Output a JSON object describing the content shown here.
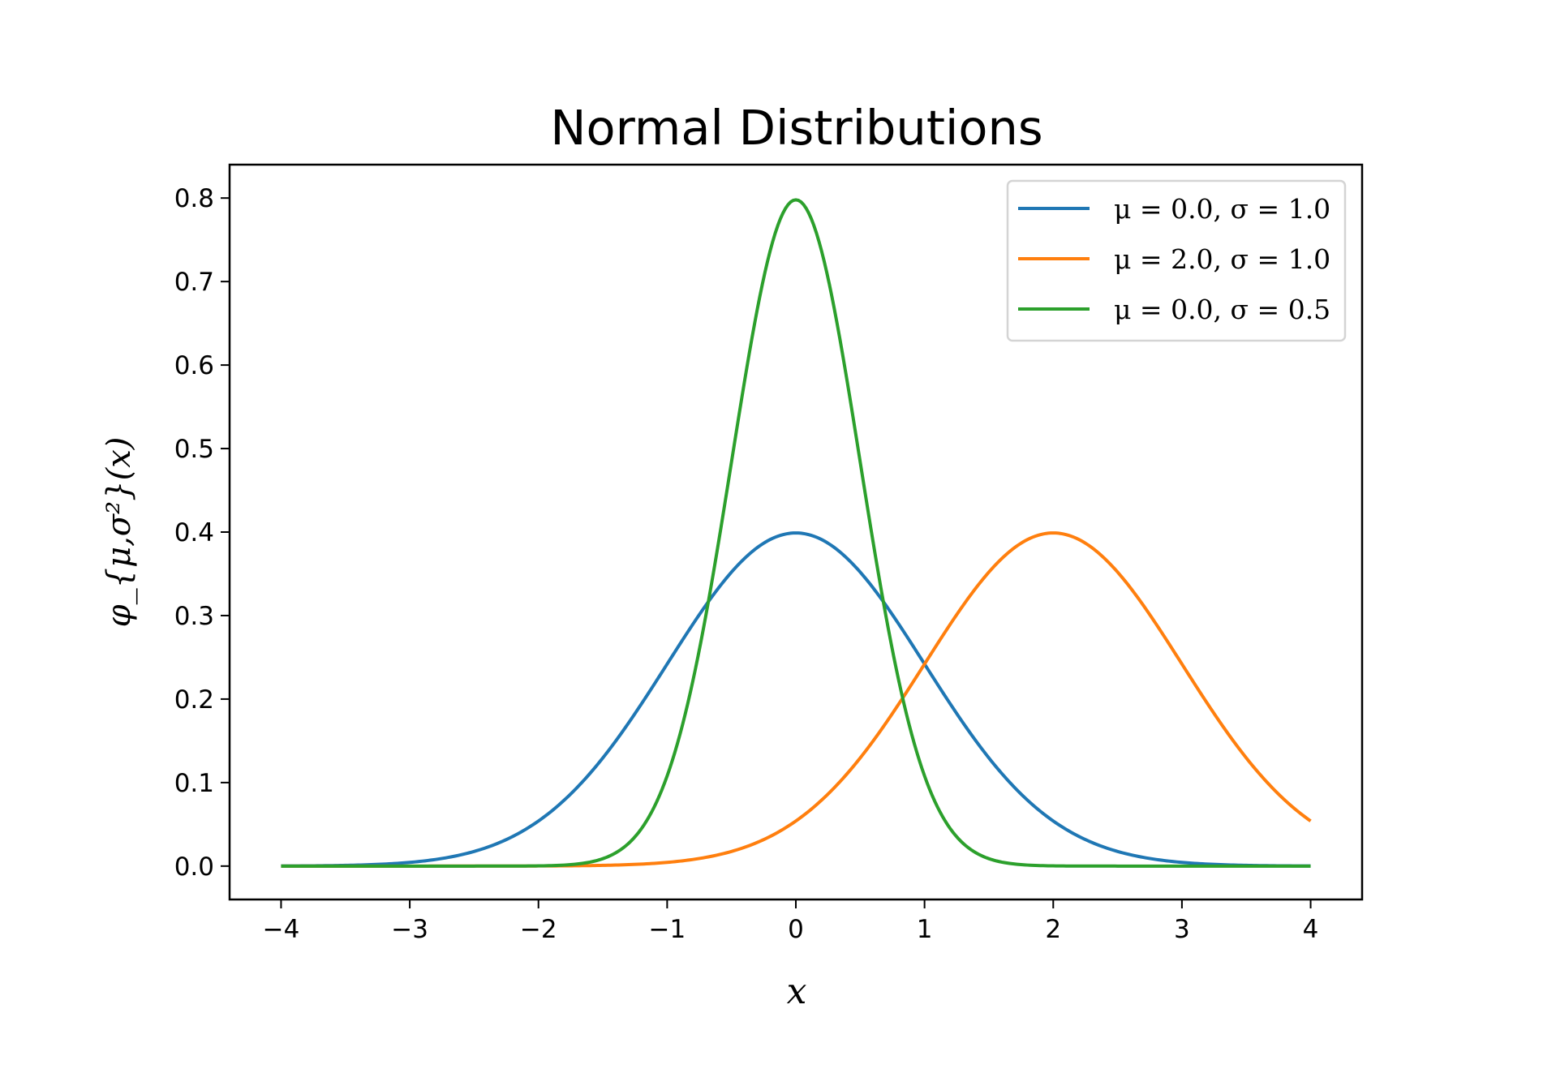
{
  "chart_data": {
    "type": "line",
    "title": "Normal Distributions",
    "xlabel": "x",
    "ylabel": "φ_{μ,σ²}(x)",
    "xlim": [
      -4.4,
      4.4
    ],
    "ylim": [
      -0.04,
      0.84
    ],
    "xticks": [
      -4,
      -3,
      -2,
      -1,
      0,
      1,
      2,
      3,
      4
    ],
    "xtick_labels": [
      "−4",
      "−3",
      "−2",
      "−1",
      "0",
      "1",
      "2",
      "3",
      "4"
    ],
    "yticks": [
      0.0,
      0.1,
      0.2,
      0.3,
      0.4,
      0.5,
      0.6,
      0.7,
      0.8
    ],
    "ytick_labels": [
      "0.0",
      "0.1",
      "0.2",
      "0.3",
      "0.4",
      "0.5",
      "0.6",
      "0.7",
      "0.8"
    ],
    "x_range": [
      -4,
      4
    ],
    "grid": false,
    "legend_placement": "top-right",
    "series": [
      {
        "name": "μ = 0.0, σ = 1.0",
        "mu": 0.0,
        "sigma": 1.0,
        "color": "#1f77b4"
      },
      {
        "name": "μ = 2.0, σ = 1.0",
        "mu": 2.0,
        "sigma": 1.0,
        "color": "#ff7f0e"
      },
      {
        "name": "μ = 0.0, σ = 0.5",
        "mu": 0.0,
        "sigma": 0.5,
        "color": "#2ca02c"
      }
    ]
  }
}
